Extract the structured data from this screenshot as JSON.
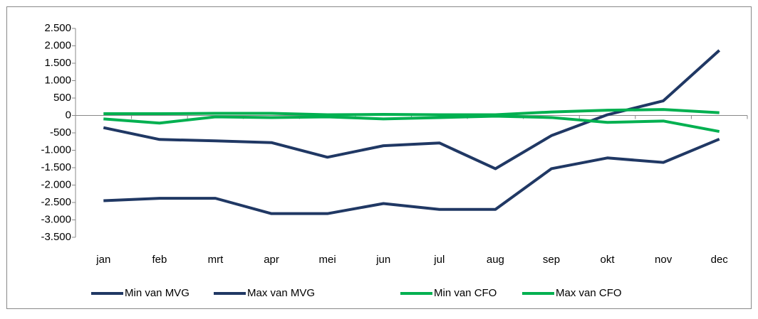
{
  "chart_data": {
    "type": "line",
    "categories": [
      "jan",
      "feb",
      "mrt",
      "apr",
      "mei",
      "jun",
      "jul",
      "aug",
      "sep",
      "okt",
      "nov",
      "dec"
    ],
    "series": [
      {
        "name": "Min van MVG",
        "color": "#203864",
        "values": [
          -2450,
          -2380,
          -2380,
          -2820,
          -2820,
          -2530,
          -2700,
          -2700,
          -1530,
          -1220,
          -1350,
          -680
        ]
      },
      {
        "name": "Max van MVG",
        "color": "#203864",
        "values": [
          -350,
          -690,
          -730,
          -780,
          -1200,
          -870,
          -790,
          -1530,
          -580,
          20,
          420,
          1870
        ]
      },
      {
        "name": "Min van CFO",
        "color": "#00b050",
        "values": [
          -100,
          -220,
          -40,
          -60,
          -40,
          -100,
          -60,
          -20,
          -60,
          -200,
          -160,
          -460
        ]
      },
      {
        "name": "Max van CFO",
        "color": "#00b050",
        "values": [
          50,
          50,
          60,
          60,
          20,
          30,
          20,
          20,
          100,
          150,
          170,
          80
        ]
      }
    ],
    "ylim": [
      -3500,
      2500
    ],
    "yticks": [
      {
        "value": 2500,
        "label": "2.500"
      },
      {
        "value": 2000,
        "label": "2.000"
      },
      {
        "value": 1500,
        "label": "1.500"
      },
      {
        "value": 1000,
        "label": "1.000"
      },
      500,
      0,
      -500,
      {
        "value": -1000,
        "label": "-1.000"
      },
      {
        "value": -1500,
        "label": "-1.500"
      },
      {
        "value": -2000,
        "label": "-2.000"
      },
      {
        "value": -2500,
        "label": "-2.500"
      },
      {
        "value": -3000,
        "label": "-3.000"
      },
      {
        "value": -3500,
        "label": "-3.500"
      }
    ],
    "grid": false,
    "legend": "bottom"
  }
}
